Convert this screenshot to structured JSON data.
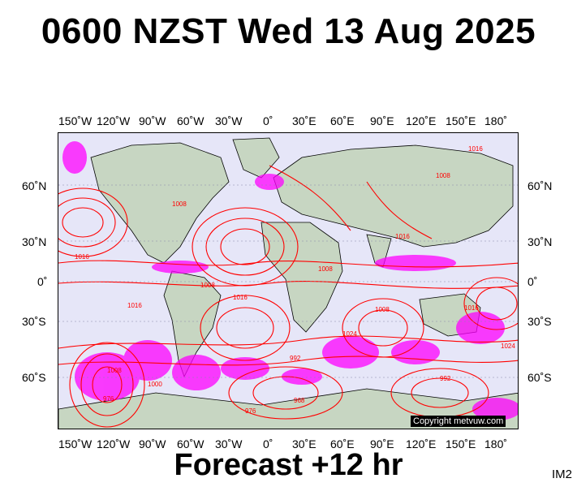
{
  "header": {
    "title": "0600 NZST Wed 13 Aug 2025"
  },
  "footer": {
    "forecast_label": "Forecast +12 hr",
    "code": "IM2"
  },
  "map": {
    "copyright": "Copyright metvuw.com",
    "colors": {
      "background": "#e6e6f8",
      "isobar": "#ff0000",
      "land": "#c7d6c2",
      "precip": "#ff00ff",
      "coast": "#000000"
    },
    "lon_ticks": [
      "150˚W",
      "120˚W",
      "90˚W",
      "60˚W",
      "30˚W",
      "0˚",
      "30˚E",
      "60˚E",
      "90˚E",
      "120˚E",
      "150˚E",
      "180˚"
    ],
    "lat_ticks": [
      "60˚N",
      "30˚N",
      "0˚",
      "30˚S",
      "60˚S"
    ],
    "isobar_labels": [
      "1016",
      "1008",
      "1008",
      "1016",
      "1008",
      "1016",
      "1008",
      "1016",
      "1024",
      "1016",
      "992",
      "976",
      "968",
      "976",
      "1008",
      "992",
      "1008",
      "1000",
      "1024",
      "1016"
    ]
  }
}
